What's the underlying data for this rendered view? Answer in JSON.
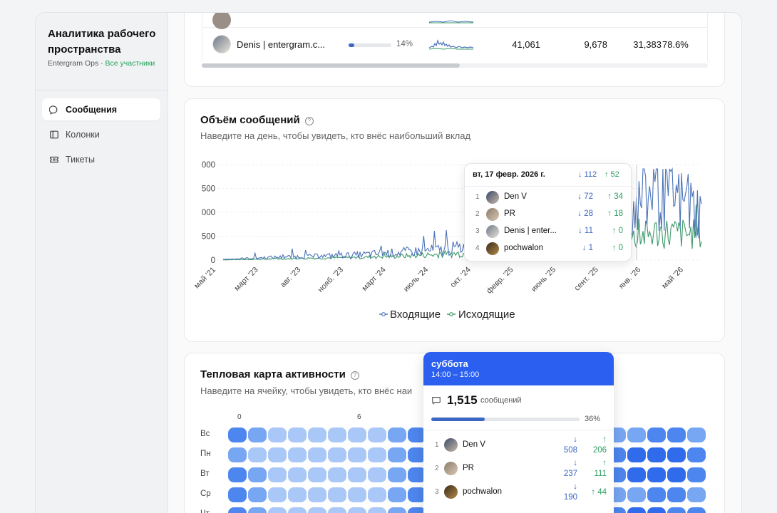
{
  "sidebar": {
    "workspace_title": "Аналитика рабочего пространства",
    "workspace_org": "Entergram Ops · ",
    "workspace_scope": "Все участники",
    "items": [
      {
        "label": "Сообщения",
        "icon": "chat-bubble-icon",
        "active": true
      },
      {
        "label": "Колонки",
        "icon": "columns-icon",
        "active": false
      },
      {
        "label": "Тикеты",
        "icon": "ticket-icon",
        "active": false
      }
    ]
  },
  "table": {
    "row": {
      "name": "Denis | entergram.c...",
      "share_pct": "14%",
      "share_value": 0.14,
      "total": "41,061",
      "incoming": "9,678",
      "outgoing": "31,383",
      "ratio": "78.6%"
    }
  },
  "volume": {
    "title": "Объём сообщений",
    "subtitle": "Наведите на день, чтобы увидеть, кто внёс наибольший вклад",
    "legend_in": "Входящие",
    "legend_out": "Исходящие",
    "colors": {
      "in": "#4a73b8",
      "out": "#3c9a6a"
    },
    "tooltip": {
      "date": "вт, 17 февр. 2026 г.",
      "in_total": "↓ 112",
      "out_total": "↑ 52",
      "rows": [
        {
          "rank": "1",
          "name": "Den V",
          "in": "↓ 72",
          "out": "↑ 34"
        },
        {
          "rank": "2",
          "name": "PR",
          "in": "↓ 28",
          "out": "↑ 18"
        },
        {
          "rank": "3",
          "name": "Denis | enter...",
          "in": "↓ 11",
          "out": "↑ 0"
        },
        {
          "rank": "4",
          "name": "pochwalon",
          "in": "↓ 1",
          "out": "↑ 0"
        }
      ]
    }
  },
  "chart_data": {
    "type": "line",
    "y_ticks": [
      "000",
      "500",
      "000",
      "500",
      "0"
    ],
    "x": [
      "май '21",
      "март '23",
      "авг. '23",
      "нояб. '23",
      "март '24",
      "июль '24",
      "окт. '24",
      "февр. '25",
      "июнь '25",
      "сент. '25",
      "янв. '26",
      "май '26"
    ],
    "series": [
      {
        "name": "Входящие",
        "values": [
          5,
          20,
          30,
          40,
          60,
          80,
          120,
          160,
          220,
          300,
          550,
          380
        ]
      },
      {
        "name": "Исходящие",
        "values": [
          2,
          8,
          15,
          20,
          30,
          45,
          60,
          80,
          110,
          140,
          220,
          200
        ]
      }
    ]
  },
  "heatmap": {
    "title": "Тепловая карта активности",
    "subtitle": "Наведите на ячейку, чтобы увидеть, кто внёс наи",
    "hour_labels": [
      "0",
      "6"
    ],
    "days": [
      "Вс",
      "Пн",
      "Вт",
      "Ср",
      "Чт"
    ],
    "tooltip": {
      "day": "суббота",
      "time": "14:00 – 15:00",
      "count": "1,515",
      "count_label": "сообщений",
      "share_pct": "36%",
      "share_value": 0.36,
      "rows": [
        {
          "rank": "1",
          "name": "Den V",
          "in": "508",
          "out": "206"
        },
        {
          "rank": "2",
          "name": "PR",
          "in": "237",
          "out": "111"
        },
        {
          "rank": "3",
          "name": "pochwalon",
          "in": "190",
          "out": "44"
        }
      ]
    }
  }
}
